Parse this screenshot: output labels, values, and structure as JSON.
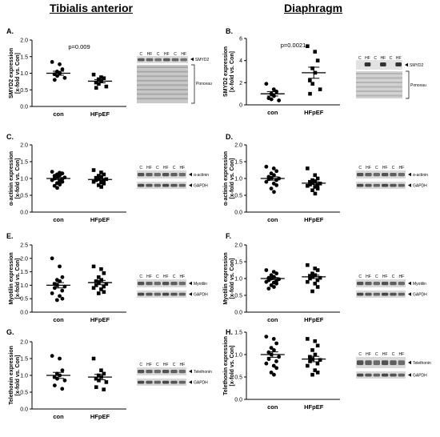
{
  "column_titles": [
    "Tibialis anterior",
    "Diaphragm"
  ],
  "blot_labels": {
    "smyd2": "SMYD2",
    "ponceau": "Ponceau",
    "actinin": "α-actinin",
    "myotilin": "Myotilin",
    "telethonin": "Telethonin",
    "gapdh": "GAPDH",
    "c": "C",
    "hf": "HF"
  },
  "chart_data": [
    {
      "panel": "A.",
      "type": "scatter",
      "ylabel": [
        "SMYD2 expression",
        "[x-fold vs. Con]"
      ],
      "categories": [
        "con",
        "HFpEF"
      ],
      "ylim": [
        0,
        2.0
      ],
      "yticks": [
        "0.0",
        "0.5",
        "1.0",
        "1.5",
        "2.0"
      ],
      "annotation": "p=0.009",
      "series": [
        {
          "values": [
            1.34,
            1.27,
            1.12,
            1.05,
            1.0,
            0.97,
            0.92,
            0.86,
            0.8
          ],
          "mean": 1.0,
          "sem": 0.06
        },
        {
          "values": [
            0.96,
            0.88,
            0.85,
            0.82,
            0.76,
            0.72,
            0.68,
            0.6,
            0.56
          ],
          "mean": 0.76,
          "sem": 0.05
        }
      ]
    },
    {
      "panel": "B.",
      "type": "scatter",
      "ylabel": [
        "SMYD2 expression",
        "[x-fold vs. Con]"
      ],
      "categories": [
        "con",
        "HFpEF"
      ],
      "ylim": [
        0,
        6
      ],
      "yticks": [
        "0",
        "2",
        "4",
        "6"
      ],
      "annotation": "p=0.0021",
      "series": [
        {
          "values": [
            1.9,
            1.4,
            1.2,
            1.0,
            0.8,
            0.6,
            0.5,
            0.4
          ],
          "mean": 1.0,
          "sem": 0.2
        },
        {
          "values": [
            5.3,
            4.8,
            4.0,
            3.3,
            2.9,
            2.2,
            1.9,
            1.4,
            1.0
          ],
          "mean": 2.9,
          "sem": 0.5
        }
      ]
    },
    {
      "panel": "C.",
      "type": "scatter",
      "ylabel": [
        "α-actinin expression",
        "[x-fold vs. Con]"
      ],
      "categories": [
        "con",
        "HFpEF"
      ],
      "ylim": [
        0,
        2.0
      ],
      "yticks": [
        "0.0",
        "0.5",
        "1.0",
        "1.5",
        "2.0"
      ],
      "annotation": "",
      "series": [
        {
          "values": [
            1.2,
            1.17,
            1.15,
            1.12,
            1.1,
            1.08,
            1.05,
            1.03,
            1.0,
            0.98,
            0.95,
            0.92,
            0.9,
            0.86,
            0.82,
            0.78,
            0.72
          ],
          "mean": 1.0,
          "sem": 0.03
        },
        {
          "values": [
            1.25,
            1.18,
            1.12,
            1.08,
            1.05,
            1.02,
            1.0,
            0.98,
            0.95,
            0.93,
            0.9,
            0.88,
            0.85,
            0.8,
            0.75
          ],
          "mean": 0.97,
          "sem": 0.03
        }
      ]
    },
    {
      "panel": "D.",
      "type": "scatter",
      "ylabel": [
        "α-actinin expression",
        "[x-fold vs. Con]"
      ],
      "categories": [
        "con",
        "HFpEF"
      ],
      "ylim": [
        0,
        2.0
      ],
      "yticks": [
        "0.0",
        "0.5",
        "1.0",
        "1.5",
        "2.0"
      ],
      "annotation": "",
      "series": [
        {
          "values": [
            1.35,
            1.3,
            1.22,
            1.15,
            1.1,
            1.05,
            1.02,
            1.0,
            0.98,
            0.95,
            0.9,
            0.85,
            0.8,
            0.7,
            0.6
          ],
          "mean": 1.0,
          "sem": 0.05
        },
        {
          "values": [
            1.3,
            1.1,
            1.0,
            0.95,
            0.92,
            0.9,
            0.88,
            0.85,
            0.82,
            0.8,
            0.78,
            0.75,
            0.7,
            0.65,
            0.55
          ],
          "mean": 0.86,
          "sem": 0.04
        }
      ]
    },
    {
      "panel": "E.",
      "type": "scatter",
      "ylabel": [
        "Myotilin expression",
        "[x-fold vs. Con]"
      ],
      "categories": [
        "con",
        "HFpEF"
      ],
      "ylim": [
        0,
        2.5
      ],
      "yticks": [
        "0.0",
        "0.5",
        "1.0",
        "1.5",
        "2.0",
        "2.5"
      ],
      "annotation": "",
      "series": [
        {
          "values": [
            2.0,
            1.7,
            1.3,
            1.2,
            1.15,
            1.05,
            1.0,
            0.95,
            0.9,
            0.8,
            0.7,
            0.6,
            0.5,
            0.45
          ],
          "mean": 1.0,
          "sem": 0.1
        },
        {
          "values": [
            1.7,
            1.6,
            1.45,
            1.3,
            1.2,
            1.15,
            1.1,
            1.05,
            1.0,
            0.95,
            0.9,
            0.85,
            0.75,
            0.7
          ],
          "mean": 1.1,
          "sem": 0.08
        }
      ]
    },
    {
      "panel": "F.",
      "type": "scatter",
      "ylabel": [
        "Myotilin expression",
        "[x-fold vs. Con]"
      ],
      "categories": [
        "con",
        "HFpEF"
      ],
      "ylim": [
        0,
        2.0
      ],
      "yticks": [
        "0.0",
        "0.5",
        "1.0",
        "1.5",
        "2.0"
      ],
      "annotation": "",
      "series": [
        {
          "values": [
            1.25,
            1.2,
            1.15,
            1.1,
            1.05,
            1.02,
            1.0,
            0.98,
            0.95,
            0.92,
            0.9,
            0.88,
            0.85,
            0.8,
            0.75,
            0.7
          ],
          "mean": 1.0,
          "sem": 0.03
        },
        {
          "values": [
            1.4,
            1.3,
            1.25,
            1.15,
            1.1,
            1.08,
            1.05,
            1.02,
            1.0,
            0.95,
            0.9,
            0.85,
            0.75,
            0.62
          ],
          "mean": 1.05,
          "sem": 0.05
        }
      ]
    },
    {
      "panel": "G.",
      "type": "scatter",
      "ylabel": [
        "Telethonin expression",
        "[x-fold vs. Con]"
      ],
      "categories": [
        "con",
        "HFpEF"
      ],
      "ylim": [
        0,
        2.0
      ],
      "yticks": [
        "0.0",
        "0.5",
        "1.0",
        "1.5",
        "2.0"
      ],
      "annotation": "",
      "series": [
        {
          "values": [
            1.58,
            1.5,
            1.15,
            1.05,
            1.0,
            0.95,
            0.9,
            0.85,
            0.7,
            0.6
          ],
          "mean": 1.0,
          "sem": 0.09
        },
        {
          "values": [
            1.5,
            1.15,
            1.05,
            1.0,
            0.95,
            0.9,
            0.85,
            0.8,
            0.65,
            0.58
          ],
          "mean": 0.95,
          "sem": 0.08
        }
      ]
    },
    {
      "panel": "H.",
      "type": "scatter",
      "ylabel": [
        "Telethonin expression",
        "[x-fold vs. Con]"
      ],
      "categories": [
        "con",
        "HFpEF"
      ],
      "ylim": [
        0,
        1.5
      ],
      "yticks": [
        "0.0",
        "0.5",
        "1.0",
        "1.5"
      ],
      "annotation": "",
      "series": [
        {
          "values": [
            1.4,
            1.35,
            1.25,
            1.15,
            1.1,
            1.05,
            1.0,
            0.95,
            0.9,
            0.85,
            0.8,
            0.75,
            0.7,
            0.6,
            0.55
          ],
          "mean": 1.0,
          "sem": 0.06
        },
        {
          "values": [
            1.35,
            1.3,
            1.2,
            1.1,
            1.0,
            0.95,
            0.9,
            0.88,
            0.85,
            0.8,
            0.75,
            0.65,
            0.6,
            0.55
          ],
          "mean": 0.9,
          "sem": 0.06
        }
      ]
    }
  ]
}
